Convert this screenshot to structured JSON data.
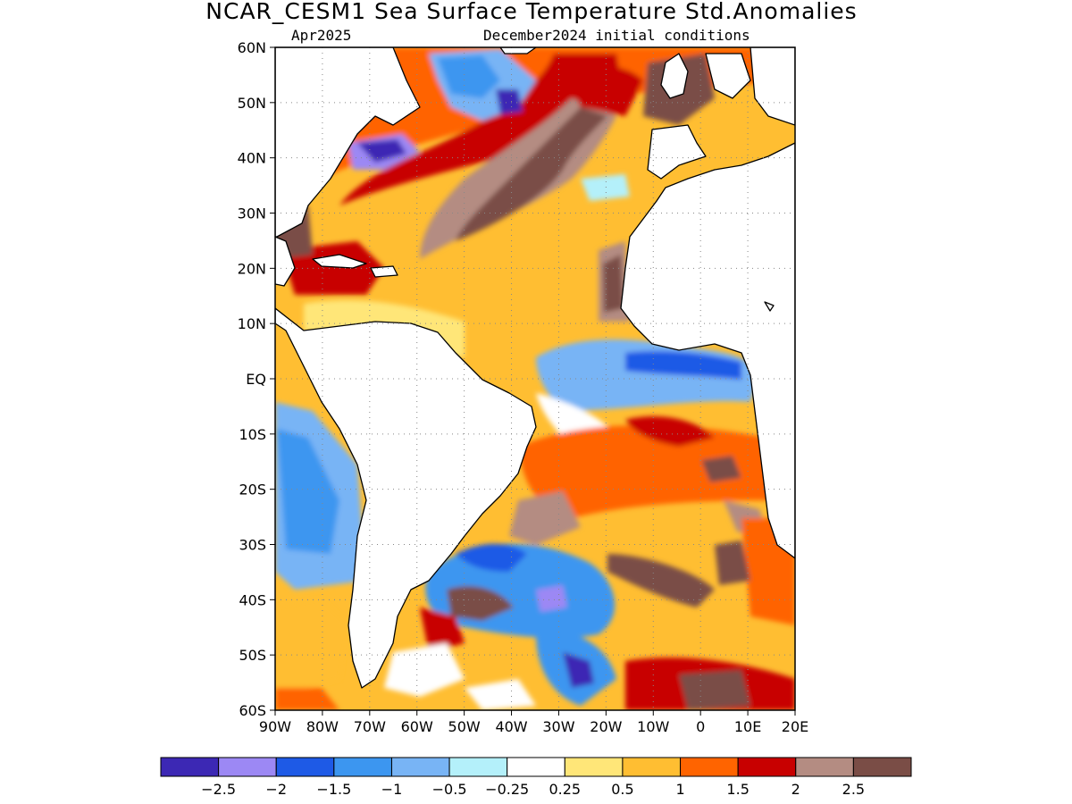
{
  "title": "NCAR_CESM1 Sea Surface Temperature Std.Anomalies",
  "subtitle_left": "Apr2025",
  "subtitle_right": "December2024 initial conditions",
  "map": {
    "lat_labels": [
      "60N",
      "50N",
      "40N",
      "30N",
      "20N",
      "10N",
      "EQ",
      "10S",
      "20S",
      "30S",
      "40S",
      "50S",
      "60S"
    ],
    "lon_labels": [
      "90W",
      "80W",
      "70W",
      "60W",
      "50W",
      "40W",
      "30W",
      "20W",
      "10W",
      "0",
      "10E",
      "20E"
    ],
    "lat_range": [
      -60,
      60
    ],
    "lon_range": [
      -90,
      20
    ],
    "grid": "dotted",
    "land_color": "#ffffff"
  },
  "colorbar": {
    "colors": [
      "#3c28b4",
      "#9c88f4",
      "#1e5ae6",
      "#3c96f0",
      "#78b4f5",
      "#b4f0fa",
      "#ffffff",
      "#ffe678",
      "#ffbe32",
      "#ff6400",
      "#c80000",
      "#b48c82",
      "#7a4d46"
    ],
    "labels": [
      "−2.5",
      "−2",
      "−1.5",
      "−1",
      "−0.5",
      "−0.25",
      "0.25",
      "0.5",
      "1",
      "1.5",
      "2",
      "2.5"
    ]
  }
}
